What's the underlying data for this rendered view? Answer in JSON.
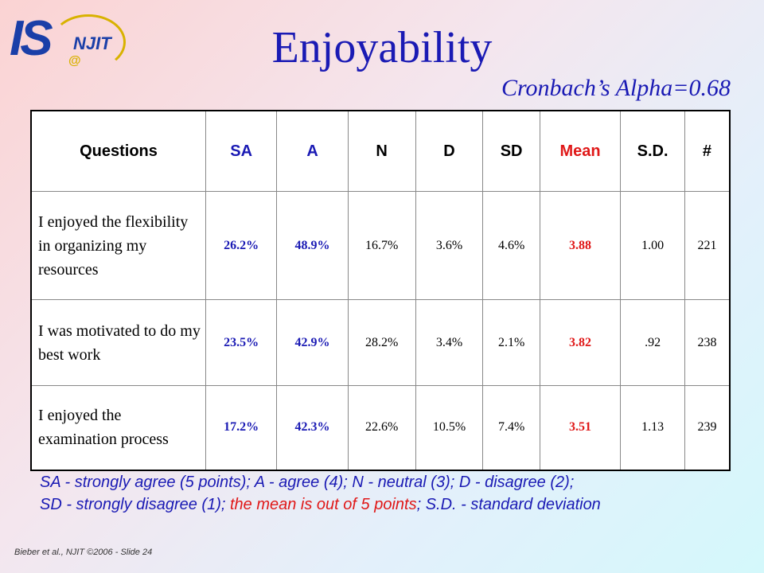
{
  "logo": {
    "is": "IS",
    "njit": "NJIT",
    "at": "@"
  },
  "title": "Enjoyability",
  "subtitle": "Cronbach’s Alpha=0.68",
  "table": {
    "headers": [
      "Questions",
      "SA",
      "A",
      "N",
      "D",
      "SD",
      "Mean",
      "S.D.",
      "#"
    ],
    "rows": [
      {
        "question": "I enjoyed the flexibility in organizing my resources",
        "sa": "26.2%",
        "a": "48.9%",
        "n": "16.7%",
        "d": "3.6%",
        "sd": "4.6%",
        "mean": "3.88",
        "stdev": "1.00",
        "count": "221"
      },
      {
        "question": "I was motivated to do my best work",
        "sa": "23.5%",
        "a": "42.9%",
        "n": "28.2%",
        "d": "3.4%",
        "sd": "2.1%",
        "mean": "3.82",
        "stdev": ".92",
        "count": "238"
      },
      {
        "question": "I enjoyed the examination process",
        "sa": "17.2%",
        "a": "42.3%",
        "n": "22.6%",
        "d": "10.5%",
        "sd": "7.4%",
        "mean": "3.51",
        "stdev": "1.13",
        "count": "239"
      }
    ]
  },
  "legend": {
    "part1": "SA - strongly agree (5 points); A - agree (4); N - neutral (3); D - disagree (2);",
    "part2": "SD - strongly disagree (1);",
    "part3_red": " the mean is out of 5 points",
    "part4": "; S.D. - standard deviation"
  },
  "footer": "Bieber et al., NJIT ©2006 - Slide 24",
  "colors": {
    "title_blue": "#1a1ab4",
    "mean_red": "#e01818",
    "logo_gold": "#d8b200"
  }
}
